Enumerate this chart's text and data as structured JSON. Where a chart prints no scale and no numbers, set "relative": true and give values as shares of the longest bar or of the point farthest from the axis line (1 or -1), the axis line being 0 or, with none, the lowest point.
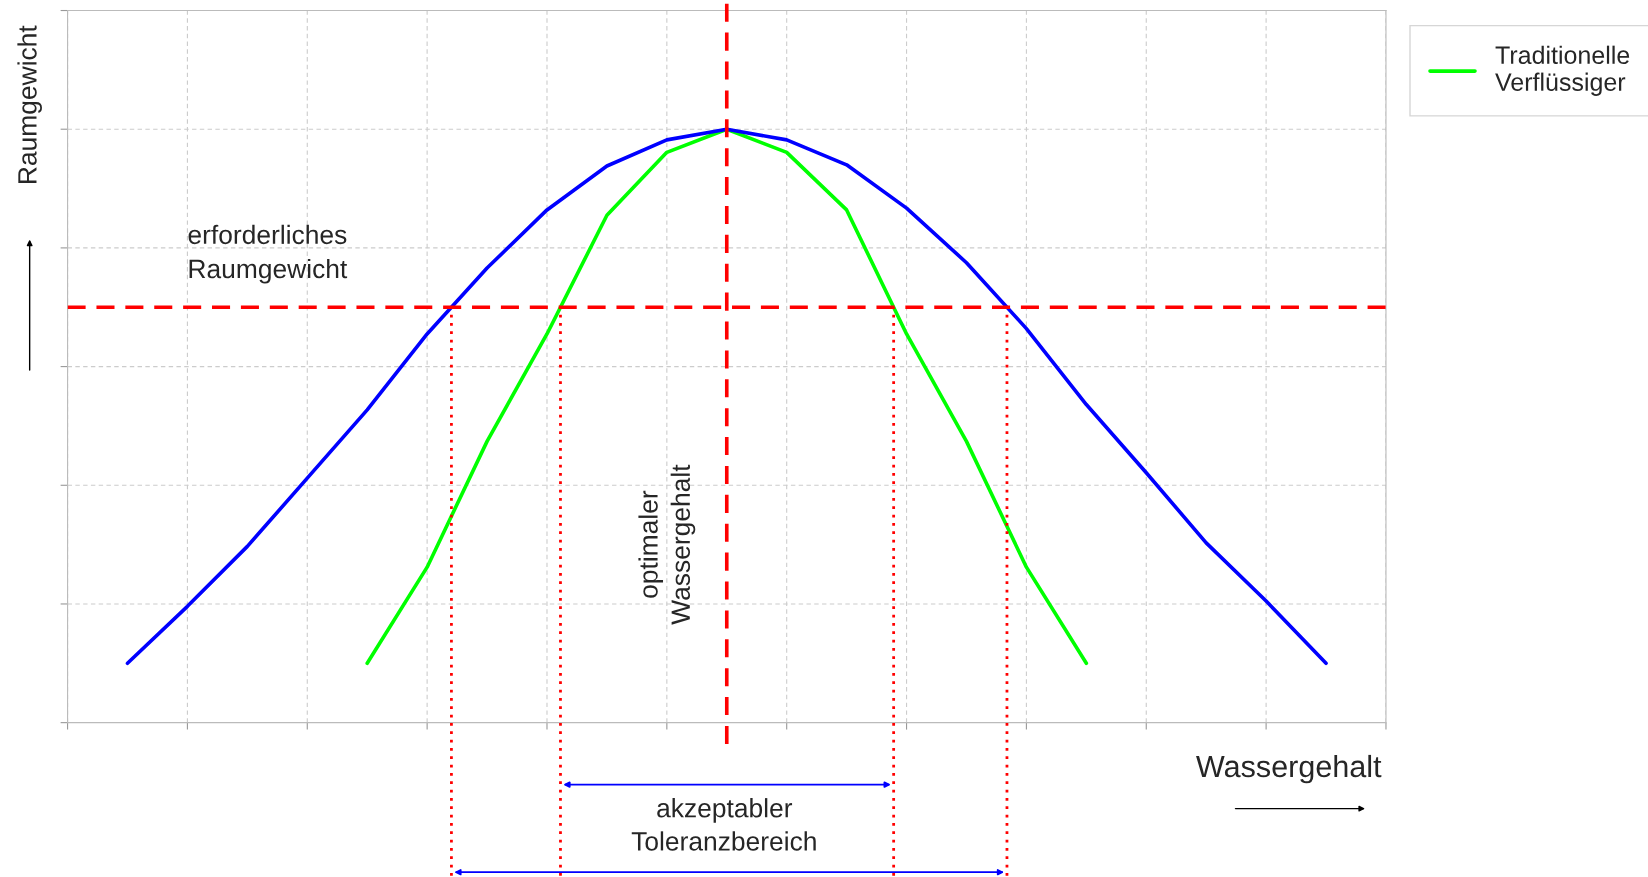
{
  "chart_data": {
    "type": "line",
    "relative": true,
    "xlabel": "Wassergehalt",
    "ylabel": "Raumgewicht",
    "categories": [
      null,
      null,
      null,
      null,
      null,
      null,
      null,
      null,
      null,
      null,
      null,
      null,
      null,
      null,
      null,
      null,
      null,
      null,
      null,
      null,
      null,
      null,
      null
    ],
    "grid": true,
    "legend": "top right",
    "marker": "none",
    "line_style": "solid",
    "series": [
      {
        "name": "Traditionelle\nVerflüssiger",
        "color": "#00ff00",
        "values": [
          null,
          null,
          null,
          null,
          null,
          0.1,
          0.262,
          0.474,
          0.655,
          0.855,
          0.961,
          1,
          0.961,
          0.864,
          0.655,
          0.474,
          0.262,
          0.1,
          null,
          null,
          null,
          null,
          null
        ]
      },
      {
        "color": "#0000ff",
        "values": [
          null,
          0.1,
          0.196,
          0.297,
          0.412,
          0.527,
          0.655,
          0.766,
          0.864,
          0.938,
          0.982,
          1,
          0.982,
          0.94,
          0.867,
          0.775,
          0.664,
          0.536,
          0.421,
          0.303,
          0.205,
          0.1,
          null
        ]
      }
    ],
    "ref_lines": [
      {
        "axis": "y",
        "value": 0.7,
        "label": "erforderliches\nRaumgewicht",
        "color": "#ff0000",
        "line_style": "dashed"
      }
    ],
    "annotations": [
      "optimaler\nWassergehalt",
      "akzeptabler\nToleranzbereich"
    ]
  }
}
